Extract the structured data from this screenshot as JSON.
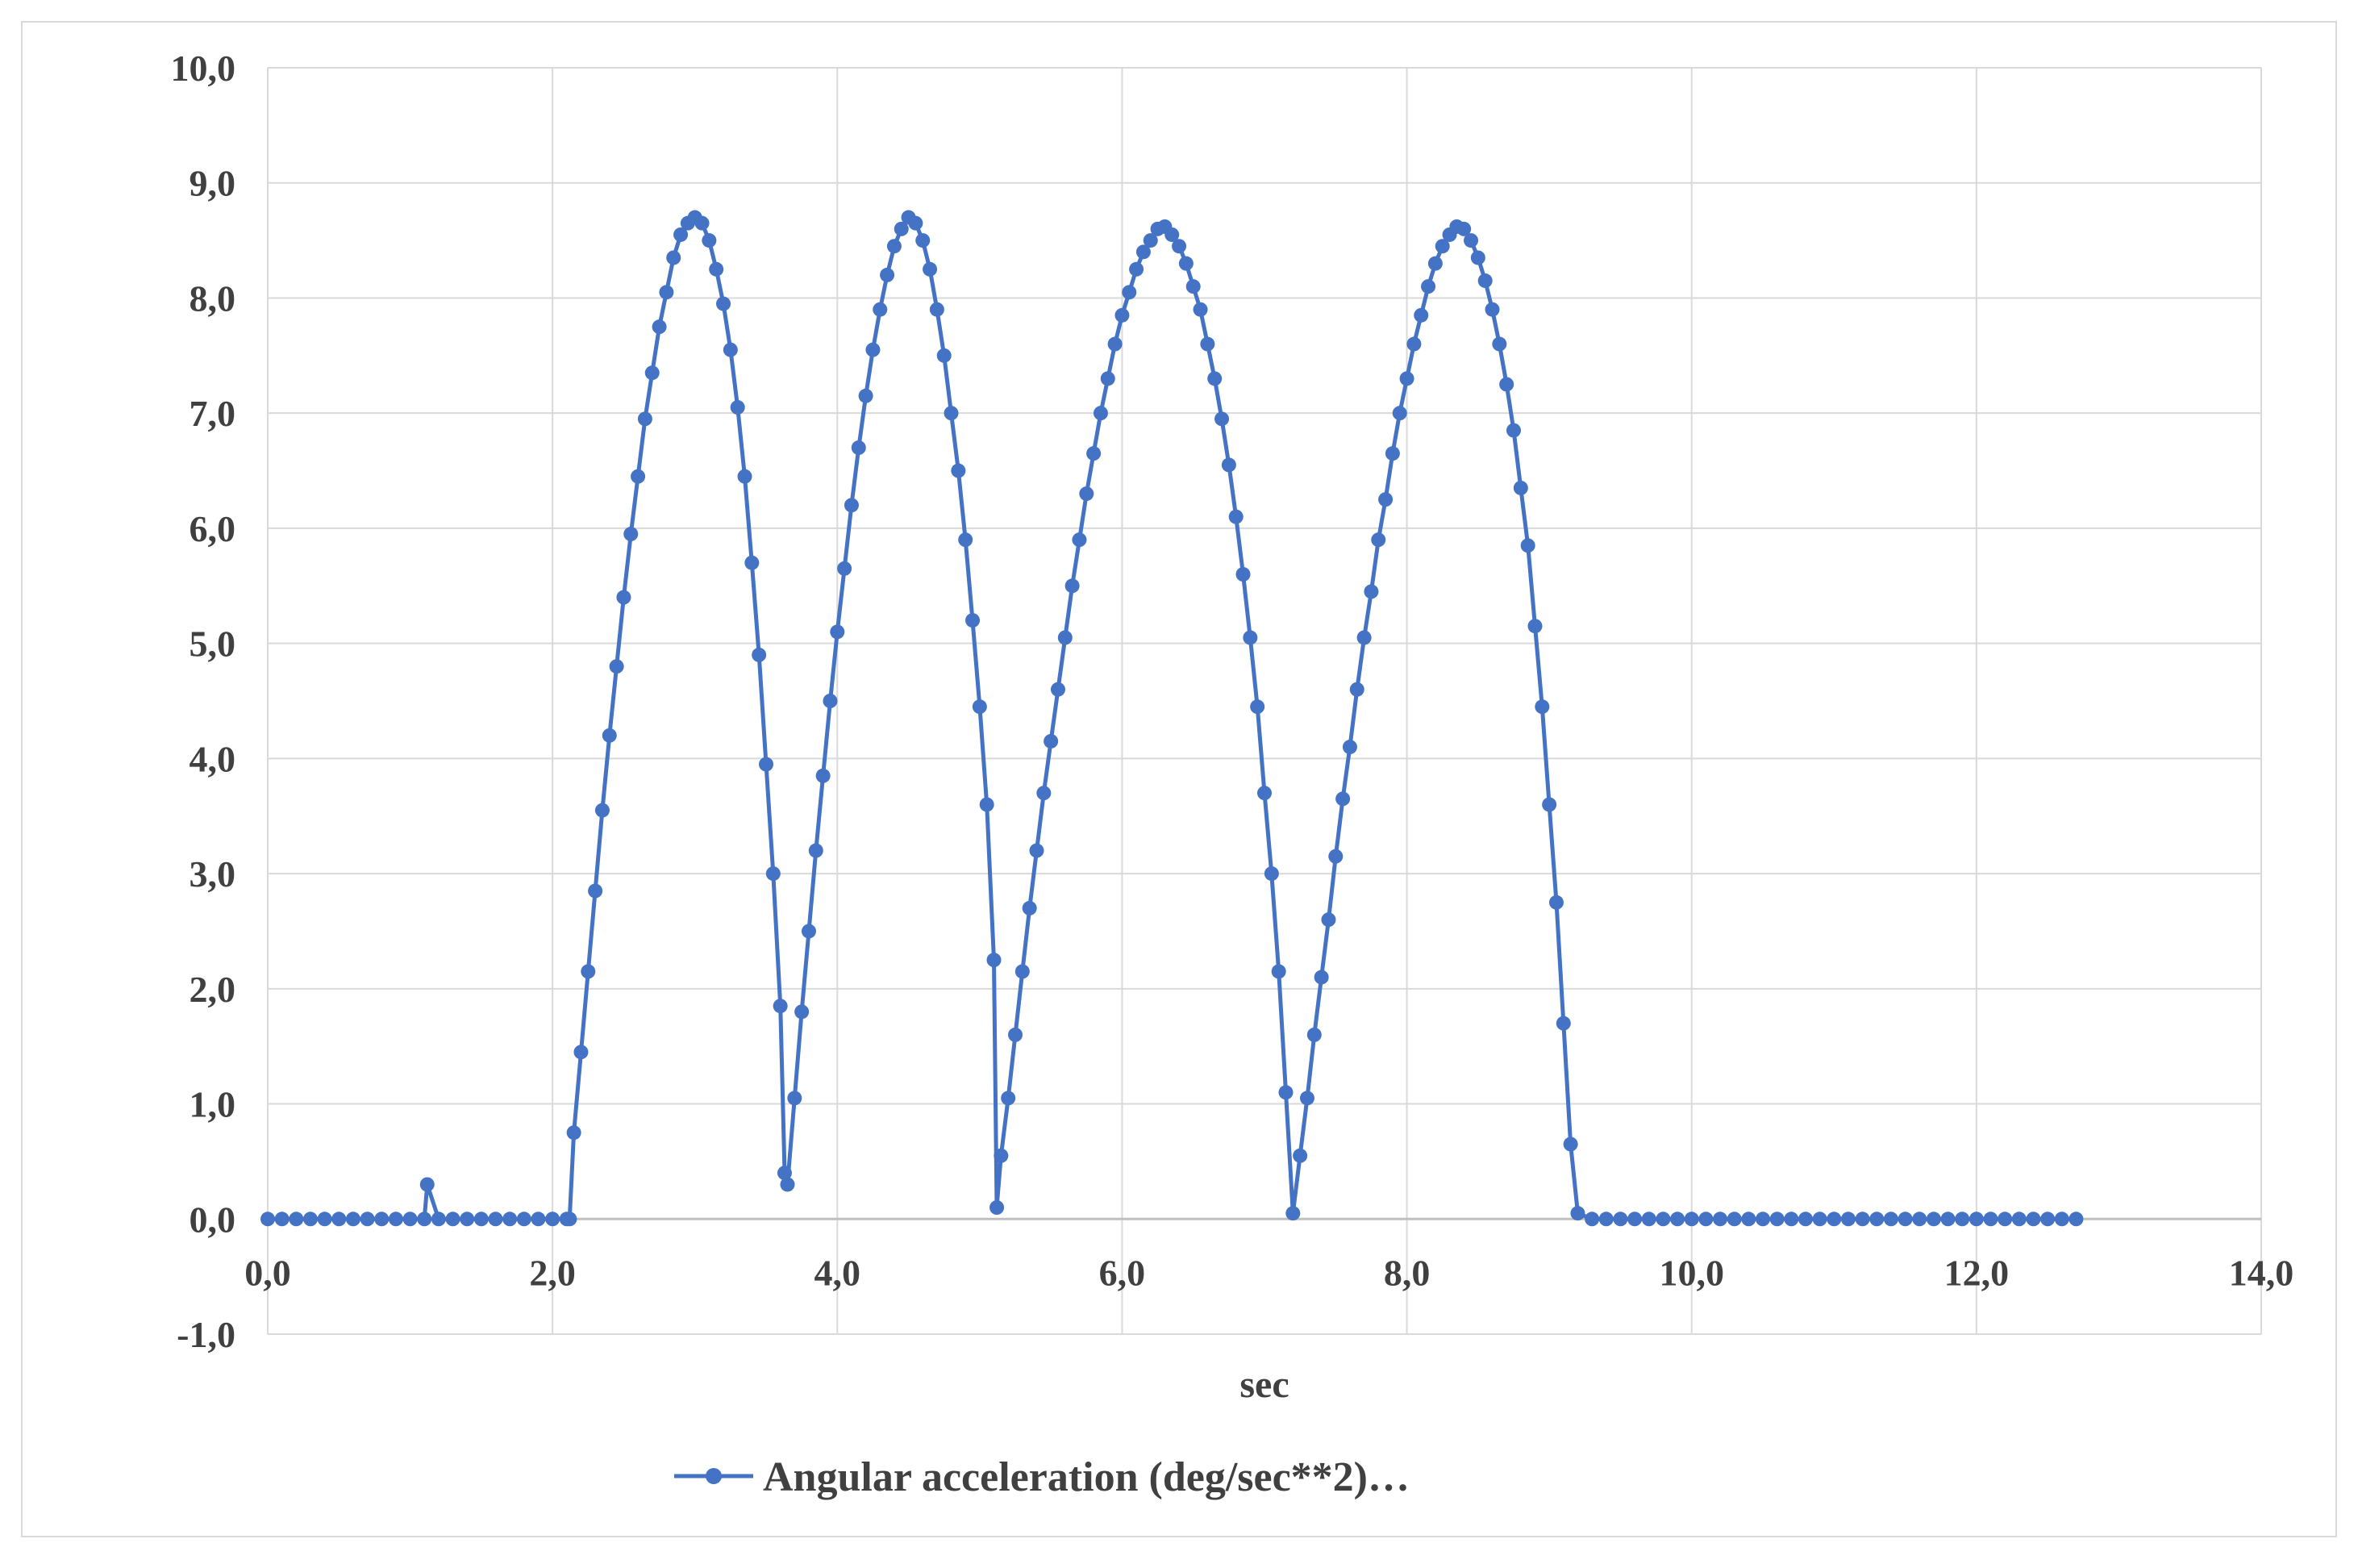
{
  "chart_data": {
    "type": "line",
    "title": "",
    "xlabel": "sec",
    "ylabel": "",
    "xlim": [
      0,
      14
    ],
    "ylim": [
      -1,
      10
    ],
    "x_ticks": [
      "0,0",
      "2,0",
      "4,0",
      "6,0",
      "8,0",
      "10,0",
      "12,0",
      "14,0"
    ],
    "y_ticks": [
      "-1,0",
      "0,0",
      "1,0",
      "2,0",
      "3,0",
      "4,0",
      "5,0",
      "6,0",
      "7,0",
      "8,0",
      "9,0",
      "10,0"
    ],
    "grid": true,
    "legend_position": "bottom",
    "series": [
      {
        "name": "Angular acceleration (deg/sec**2)…",
        "color": "#4472c4",
        "marker": "circle",
        "x": [
          0.0,
          0.1,
          0.2,
          0.3,
          0.4,
          0.5,
          0.6,
          0.7,
          0.8,
          0.9,
          1.0,
          1.1,
          1.12,
          1.2,
          1.3,
          1.4,
          1.5,
          1.6,
          1.7,
          1.8,
          1.9,
          2.0,
          2.1,
          2.12,
          2.15,
          2.2,
          2.25,
          2.3,
          2.35,
          2.4,
          2.45,
          2.5,
          2.55,
          2.6,
          2.65,
          2.7,
          2.75,
          2.8,
          2.85,
          2.9,
          2.95,
          3.0,
          3.05,
          3.1,
          3.15,
          3.2,
          3.25,
          3.3,
          3.35,
          3.4,
          3.45,
          3.5,
          3.55,
          3.6,
          3.63,
          3.65,
          3.7,
          3.75,
          3.8,
          3.85,
          3.9,
          3.95,
          4.0,
          4.05,
          4.1,
          4.15,
          4.2,
          4.25,
          4.3,
          4.35,
          4.4,
          4.45,
          4.5,
          4.55,
          4.6,
          4.65,
          4.7,
          4.75,
          4.8,
          4.85,
          4.9,
          4.95,
          5.0,
          5.05,
          5.1,
          5.12,
          5.15,
          5.2,
          5.25,
          5.3,
          5.35,
          5.4,
          5.45,
          5.5,
          5.55,
          5.6,
          5.65,
          5.7,
          5.75,
          5.8,
          5.85,
          5.9,
          5.95,
          6.0,
          6.05,
          6.1,
          6.15,
          6.2,
          6.25,
          6.3,
          6.35,
          6.4,
          6.45,
          6.5,
          6.55,
          6.6,
          6.65,
          6.7,
          6.75,
          6.8,
          6.85,
          6.9,
          6.95,
          7.0,
          7.05,
          7.1,
          7.15,
          7.2,
          7.25,
          7.3,
          7.35,
          7.4,
          7.45,
          7.5,
          7.55,
          7.6,
          7.65,
          7.7,
          7.75,
          7.8,
          7.85,
          7.9,
          7.95,
          8.0,
          8.05,
          8.1,
          8.15,
          8.2,
          8.25,
          8.3,
          8.35,
          8.4,
          8.45,
          8.5,
          8.55,
          8.6,
          8.65,
          8.7,
          8.75,
          8.8,
          8.85,
          8.9,
          8.95,
          9.0,
          9.05,
          9.1,
          9.15,
          9.2,
          9.3,
          9.4,
          9.5,
          9.6,
          9.7,
          9.8,
          9.9,
          10.0,
          10.1,
          10.2,
          10.3,
          10.4,
          10.5,
          10.6,
          10.7,
          10.8,
          10.9,
          11.0,
          11.1,
          11.2,
          11.3,
          11.4,
          11.5,
          11.6,
          11.7,
          11.8,
          11.9,
          12.0,
          12.1,
          12.2,
          12.3,
          12.4,
          12.5,
          12.6,
          12.7
        ],
        "y": [
          0.0,
          0.0,
          0.0,
          0.0,
          0.0,
          0.0,
          0.0,
          0.0,
          0.0,
          0.0,
          0.0,
          0.0,
          0.3,
          0.0,
          0.0,
          0.0,
          0.0,
          0.0,
          0.0,
          0.0,
          0.0,
          0.0,
          0.0,
          0.0,
          0.75,
          1.45,
          2.15,
          2.85,
          3.55,
          4.2,
          4.8,
          5.4,
          5.95,
          6.45,
          6.95,
          7.35,
          7.75,
          8.05,
          8.35,
          8.55,
          8.65,
          8.7,
          8.65,
          8.5,
          8.25,
          7.95,
          7.55,
          7.05,
          6.45,
          5.7,
          4.9,
          3.95,
          3.0,
          1.85,
          0.4,
          0.3,
          1.05,
          1.8,
          2.5,
          3.2,
          3.85,
          4.5,
          5.1,
          5.65,
          6.2,
          6.7,
          7.15,
          7.55,
          7.9,
          8.2,
          8.45,
          8.6,
          8.7,
          8.65,
          8.5,
          8.25,
          7.9,
          7.5,
          7.0,
          6.5,
          5.9,
          5.2,
          4.45,
          3.6,
          2.25,
          0.1,
          0.55,
          1.05,
          1.6,
          2.15,
          2.7,
          3.2,
          3.7,
          4.15,
          4.6,
          5.05,
          5.5,
          5.9,
          6.3,
          6.65,
          7.0,
          7.3,
          7.6,
          7.85,
          8.05,
          8.25,
          8.4,
          8.5,
          8.6,
          8.62,
          8.55,
          8.45,
          8.3,
          8.1,
          7.9,
          7.6,
          7.3,
          6.95,
          6.55,
          6.1,
          5.6,
          5.05,
          4.45,
          3.7,
          3.0,
          2.15,
          1.1,
          0.05,
          0.55,
          1.05,
          1.6,
          2.1,
          2.6,
          3.15,
          3.65,
          4.1,
          4.6,
          5.05,
          5.45,
          5.9,
          6.25,
          6.65,
          7.0,
          7.3,
          7.6,
          7.85,
          8.1,
          8.3,
          8.45,
          8.55,
          8.62,
          8.6,
          8.5,
          8.35,
          8.15,
          7.9,
          7.6,
          7.25,
          6.85,
          6.35,
          5.85,
          5.15,
          4.45,
          3.6,
          2.75,
          1.7,
          0.65,
          0.05,
          0.0,
          0.0,
          0.0,
          0.0,
          0.0,
          0.0,
          0.0,
          0.0,
          0.0,
          0.0,
          0.0,
          0.0,
          0.0,
          0.0,
          0.0,
          0.0,
          0.0,
          0.0,
          0.0,
          0.0,
          0.0,
          0.0,
          0.0,
          0.0,
          0.0,
          0.0,
          0.0,
          0.0,
          0.0,
          0.0,
          0.0,
          0.0,
          0.0,
          0.0,
          0.0
        ]
      }
    ]
  }
}
